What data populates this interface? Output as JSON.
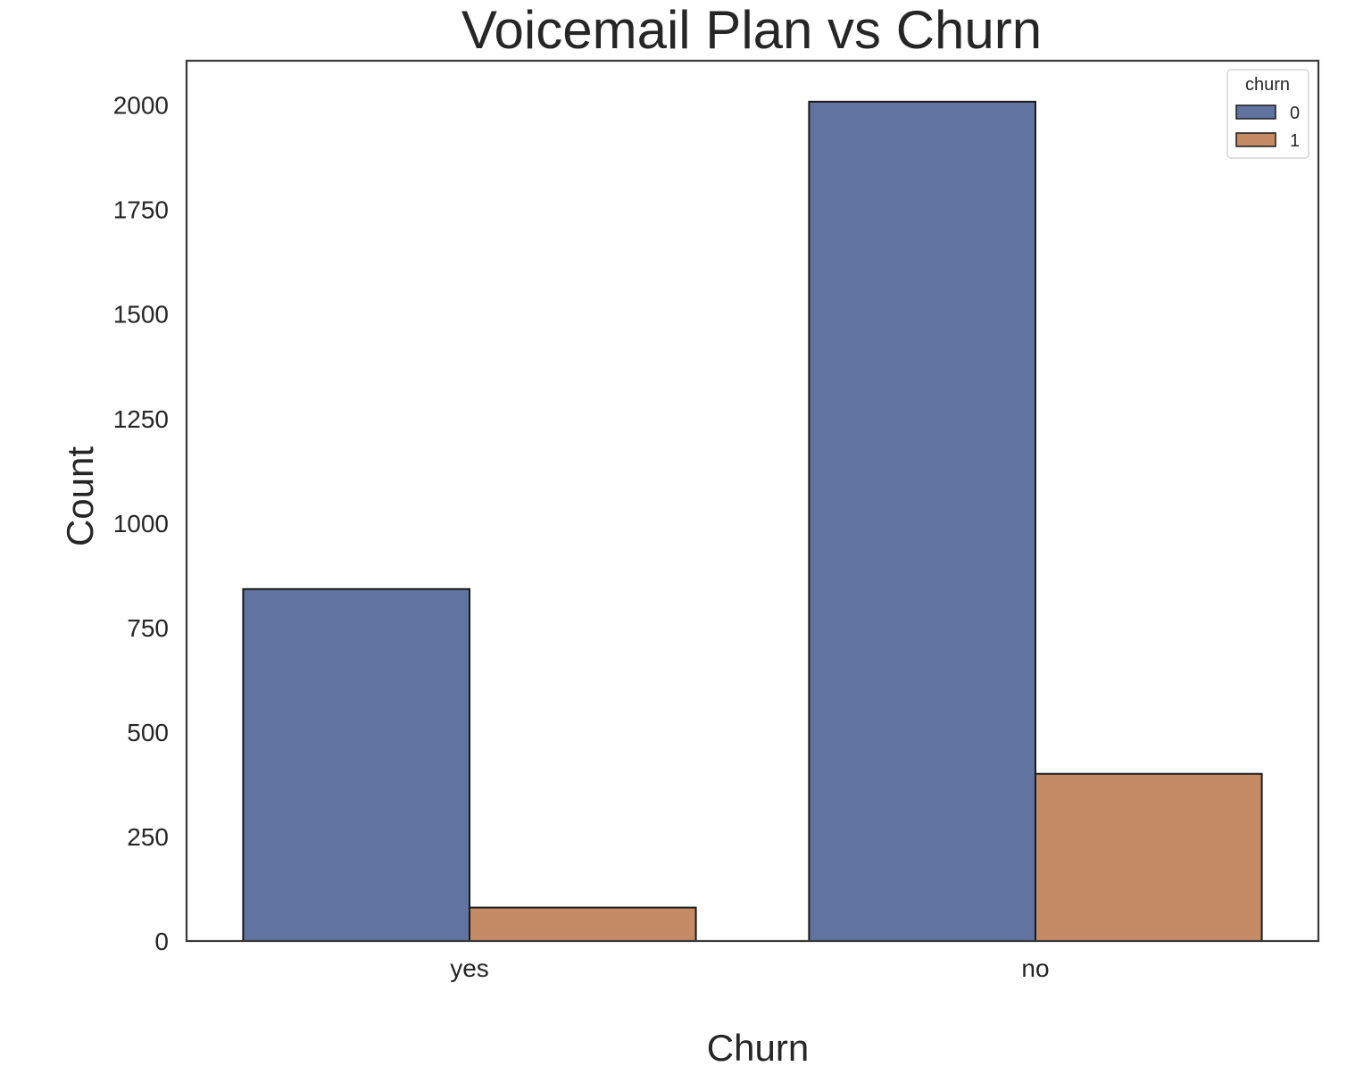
{
  "colors": {
    "series_0": "#6173a1",
    "series_1": "#c48b65",
    "edge": "#1a1a1a",
    "axis": "#3a3a3a",
    "text": "#262626",
    "background": "#ffffff"
  },
  "chart_data": {
    "type": "bar",
    "title": "Voicemail Plan vs Churn",
    "xlabel": "Churn",
    "ylabel": "Count",
    "categories": [
      "yes",
      "no"
    ],
    "series": [
      {
        "name": "0",
        "values": [
          842,
          2008
        ]
      },
      {
        "name": "1",
        "values": [
          80,
          400
        ]
      }
    ],
    "ylim": [
      0,
      2106
    ],
    "yticks": [
      0,
      250,
      500,
      750,
      1000,
      1250,
      1500,
      1750,
      2000
    ],
    "grid": false,
    "legend": {
      "title": "churn",
      "placement": "top-right"
    }
  }
}
